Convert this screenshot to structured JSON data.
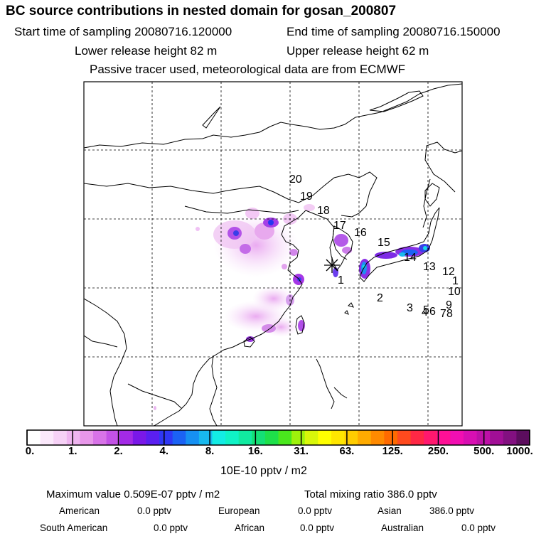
{
  "header": {
    "title": "BC  source contributions in nested domain for gosan_200807",
    "start_time": "Start time of sampling 20080716.120000",
    "end_time": "End time of sampling 20080716.150000",
    "lower_height": "Lower release height   82 m",
    "upper_height": "Upper release height   62 m",
    "tracer_note": "Passive tracer used, meteorological data are from ECMWF"
  },
  "map": {
    "trajectory_labels": [
      "1",
      "2",
      "3",
      "4",
      "5",
      "6",
      "7",
      "8",
      "9",
      "10",
      "1",
      "12",
      "13",
      "14",
      "15",
      "16",
      "17",
      "18",
      "19",
      "20"
    ],
    "receptor_marker": "receptor-star"
  },
  "colorbar": {
    "tick_labels": [
      "0.",
      "1.",
      "2.",
      "4.",
      "8.",
      "16.",
      "31.",
      "63.",
      "125.",
      "250.",
      "500.",
      "1000."
    ],
    "colors": [
      "#ffffff",
      "#fbe8fb",
      "#f6d1f6",
      "#efb5f0",
      "#e897ea",
      "#d873e8",
      "#c352e6",
      "#a32ae6",
      "#7a18e8",
      "#5a1ff0",
      "#2f37f5",
      "#1b62f4",
      "#1690f2",
      "#18b9ee",
      "#13ece4",
      "#10f2c6",
      "#11eaa0",
      "#14e076",
      "#1ee04a",
      "#4ae81d",
      "#9ef20c",
      "#d8f70a",
      "#ffff00",
      "#ffe600",
      "#ffcc00",
      "#ffab00",
      "#ff8a00",
      "#ff6a00",
      "#ff4a1e",
      "#ff2845",
      "#ff186e",
      "#ff1096",
      "#f20fb2",
      "#d80fb2",
      "#bd10a7",
      "#a10f96",
      "#821080",
      "#5c0d5e"
    ],
    "unit": "10E-10 pptv / m2"
  },
  "footer": {
    "max_value": "Maximum value  0.509E-07 pptv / m2",
    "total_mixing": "Total mixing ratio      386.0 pptv",
    "american_label": "American",
    "american_value": "0.0 pptv",
    "european_label": "European",
    "european_value": "0.0 pptv",
    "asian_label": "Asian",
    "asian_value": "386.0 pptv",
    "south_american_label": "South American",
    "south_american_value": "0.0 pptv",
    "african_label": "African",
    "african_value": "0.0 pptv",
    "australian_label": "Australian",
    "australian_value": "0.0 pptv"
  }
}
